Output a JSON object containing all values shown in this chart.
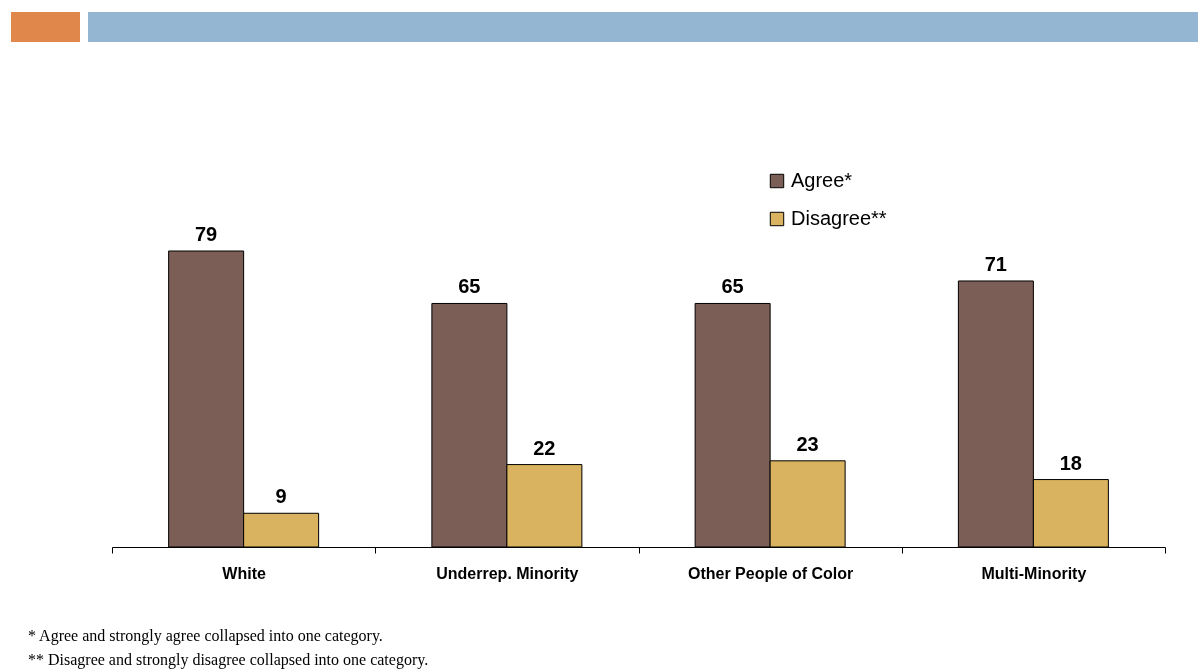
{
  "chart_data": {
    "type": "bar",
    "categories": [
      "White",
      "Underrep. Minority",
      "Other People of Color",
      "Multi-Minority"
    ],
    "series": [
      {
        "name": "Agree*",
        "color": "#7b5e55",
        "values": [
          79,
          65,
          65,
          71
        ]
      },
      {
        "name": "Disagree**",
        "color": "#d9b35f",
        "values": [
          9,
          22,
          23,
          18
        ]
      }
    ],
    "data_labels": true,
    "legend": "top right",
    "grid": false,
    "annotations": [
      "* Agree and strongly agree collapsed into one category.",
      "** Disagree and strongly disagree collapsed into one category."
    ]
  }
}
